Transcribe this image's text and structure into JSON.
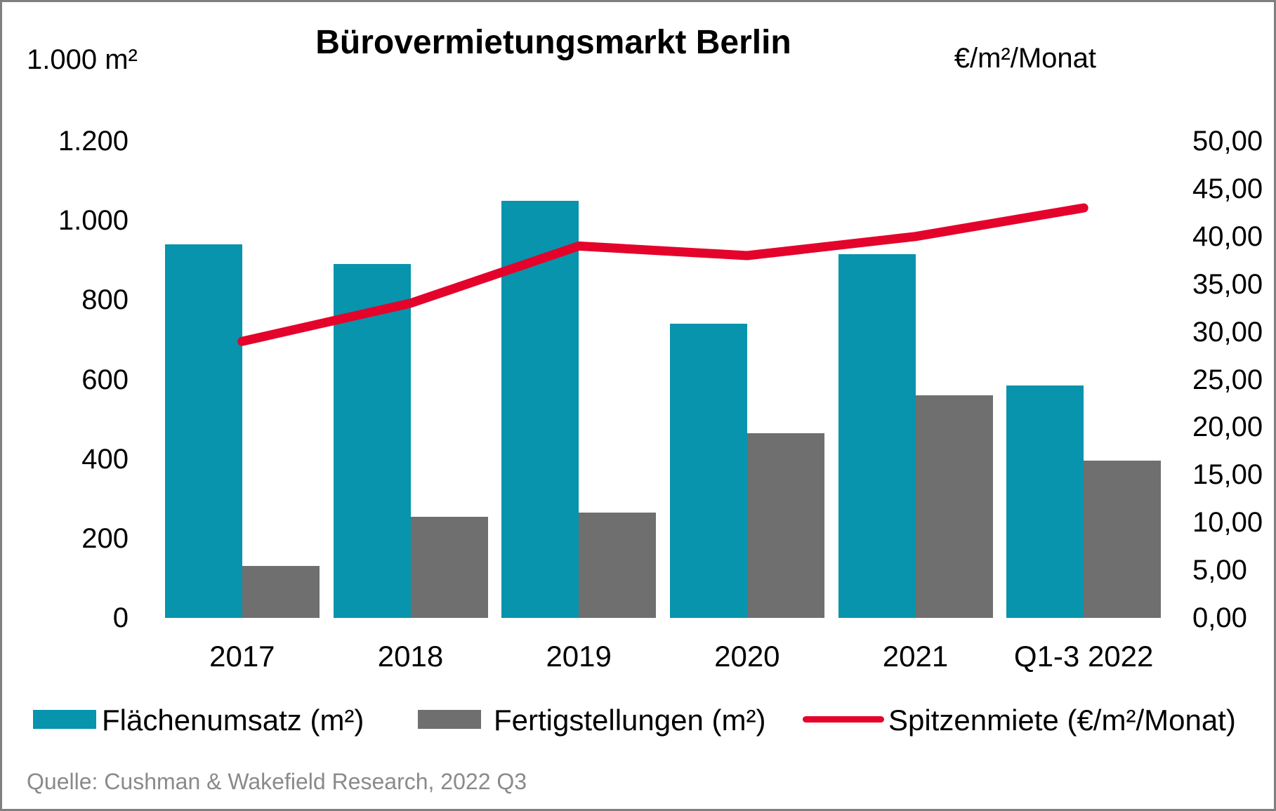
{
  "title": "Bürovermietungsmarkt Berlin",
  "left_axis": {
    "unit": "1.000 m²",
    "ticks": [
      "0",
      "200",
      "400",
      "600",
      "800",
      "1.000",
      "1.200"
    ]
  },
  "right_axis": {
    "unit": "€/m²/Monat",
    "ticks": [
      "0,00",
      "5,00",
      "10,00",
      "15,00",
      "20,00",
      "25,00",
      "30,00",
      "35,00",
      "40,00",
      "45,00",
      "50,00"
    ]
  },
  "legend": {
    "items": [
      {
        "label": "Flächenumsatz (m²)"
      },
      {
        "label": "Fertigstellungen (m²)"
      },
      {
        "label": "Spitzenmiete (€/m²/Monat)"
      }
    ]
  },
  "source": "Quelle: Cushman & Wakefield Research, 2022 Q3",
  "colors": {
    "bar_teal": "#0894ac",
    "bar_gray": "#6f6f6f",
    "line_red": "#e4032b",
    "source_text": "#8a8a8a",
    "border": "#7f7f7f"
  },
  "chart_data": {
    "type": "bar",
    "subtype": "grouped-bar-with-line-combo",
    "title": "Bürovermietungsmarkt Berlin",
    "categories": [
      "2017",
      "2018",
      "2019",
      "2020",
      "2021",
      "Q1-3 2022"
    ],
    "series": [
      {
        "name": "Flächenumsatz (m²)",
        "key": "flaechenumsatz",
        "type": "bar",
        "axis": "left",
        "color": "#0894ac",
        "values": [
          940,
          890,
          1050,
          740,
          915,
          585
        ]
      },
      {
        "name": "Fertigstellungen (m²)",
        "key": "fertigstellungen",
        "type": "bar",
        "axis": "left",
        "color": "#6f6f6f",
        "values": [
          130,
          255,
          265,
          465,
          560,
          395
        ]
      },
      {
        "name": "Spitzenmiete (€/m²/Monat)",
        "key": "spitzenmiete",
        "type": "line",
        "axis": "right",
        "color": "#e4032b",
        "values": [
          29.0,
          33.0,
          39.0,
          38.0,
          40.0,
          43.0
        ]
      }
    ],
    "left_ylabel": "1.000 m²",
    "left_ylim": [
      0,
      1200
    ],
    "left_tick_step": 200,
    "right_ylabel": "€/m²/Monat",
    "right_ylim": [
      0,
      50
    ],
    "right_tick_step": 5,
    "grid": false,
    "legend_position": "bottom"
  }
}
